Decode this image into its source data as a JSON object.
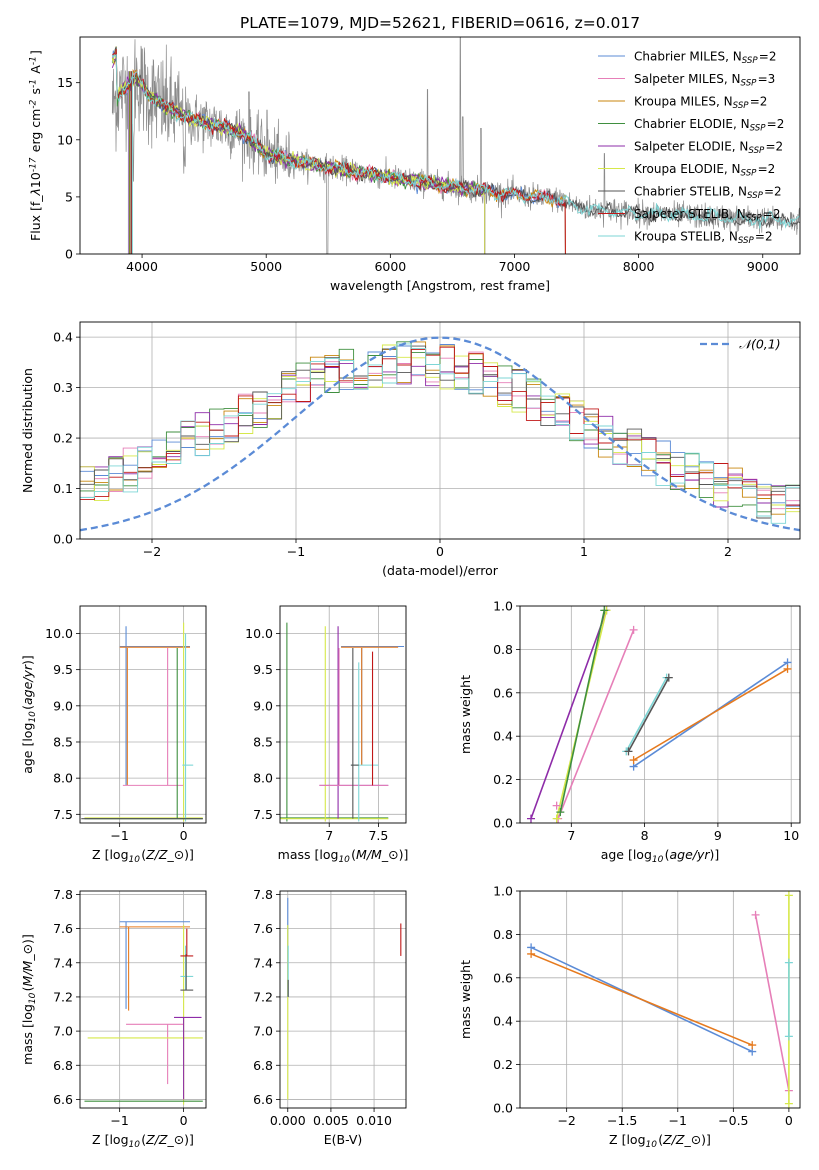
{
  "figure_title": "PLATE=1079, MJD=52621, FIBERID=0616, z=0.017",
  "colors": {
    "chabrier_miles": "#5b8bd6",
    "salpeter_miles": "#e67fb8",
    "kroupa_miles": "#c8860e",
    "chabrier_elodie": "#3f8f3f",
    "salpeter_elodie": "#8e2ca8",
    "kroupa_elodie": "#d6e84a",
    "chabrier_stelib": "#555555",
    "salpeter_stelib": "#c01818",
    "kroupa_stelib": "#7dd6d6",
    "data_gray": "#8a8a8a",
    "gauss": "#5b8bd6",
    "orange": "#e67a1e"
  },
  "chart_data": [
    {
      "id": "spectrum",
      "type": "line",
      "xlabel": "wavelength [Angstrom, rest frame]",
      "ylabel": "Flux [f$_\\lambda$10$^{-17}$ erg cm$^{-2}$ s$^{-1}$ A$^{-1}$]",
      "xlim": [
        3500,
        9300
      ],
      "ylim": [
        0,
        19
      ],
      "xticks": [
        4000,
        5000,
        6000,
        7000,
        8000,
        9000
      ],
      "yticks": [
        0,
        5,
        10,
        15
      ],
      "grid": false,
      "legend_loc": "upper-right",
      "legend": [
        {
          "name": "Chabrier MILES, N$_{SSP}$=2",
          "color": "chabrier_miles"
        },
        {
          "name": "Salpeter MILES, N$_{SSP}$=3",
          "color": "salpeter_miles"
        },
        {
          "name": "Kroupa MILES, N$_{SSP}$=2",
          "color": "kroupa_miles"
        },
        {
          "name": "Chabrier ELODIE, N$_{SSP}$=2",
          "color": "chabrier_elodie"
        },
        {
          "name": "Salpeter ELODIE, N$_{SSP}$=2",
          "color": "salpeter_elodie"
        },
        {
          "name": "Kroupa ELODIE, N$_{SSP}$=2",
          "color": "kroupa_elodie"
        },
        {
          "name": "Chabrier STELIB, N$_{SSP}$=2",
          "color": "chabrier_stelib"
        },
        {
          "name": "Salpeter STELIB, N$_{SSP}$=2",
          "color": "salpeter_stelib"
        },
        {
          "name": "Kroupa STELIB, N$_{SSP}$=2",
          "color": "kroupa_stelib"
        }
      ],
      "continuum": {
        "x": [
          3760,
          3850,
          3950,
          4050,
          4200,
          4400,
          4600,
          4800,
          5000,
          5200,
          5500,
          6000,
          6500,
          7000,
          7400,
          7500,
          8000,
          8500,
          9000,
          9300
        ],
        "y": [
          13.0,
          14.5,
          15.5,
          14.0,
          12.8,
          11.8,
          11.3,
          10.6,
          8.8,
          8.2,
          7.6,
          6.7,
          5.9,
          5.2,
          4.7,
          4.1,
          3.6,
          3.3,
          3.0,
          2.9
        ]
      },
      "models_end": {
        "miles": 7410,
        "elodie": 6760
      },
      "emission_lines": [
        [
          6563,
          15.3
        ],
        [
          6583,
          8.0
        ],
        [
          6300,
          10.4
        ],
        [
          5007,
          8.6
        ],
        [
          4959,
          7.2
        ],
        [
          6730,
          7.0
        ],
        [
          7725,
          4.8
        ],
        [
          4861,
          10.2
        ]
      ]
    },
    {
      "id": "residuals",
      "type": "bar",
      "xlabel": "(data-model)/error",
      "ylabel": "Normed distribution",
      "xlim": [
        -2.5,
        2.5
      ],
      "ylim": [
        0,
        0.43
      ],
      "xticks": [
        -2,
        -1,
        0,
        1,
        2
      ],
      "yticks": [
        0.0,
        0.1,
        0.2,
        0.3,
        0.4
      ],
      "grid": true,
      "legend_loc": "upper-right",
      "legend": [
        {
          "name": "$\\mathcal{N}(0,1)$",
          "color": "gauss"
        }
      ],
      "bin_start": -2.5,
      "bin_width": 0.1
    },
    {
      "id": "age_vs_Z",
      "type": "scatter",
      "xlabel": "Z [log$_{10}$($Z/Z_\\odot$)]",
      "ylabel": "age  [log$_{10}$($age/yr$)]",
      "xlim": [
        -1.62,
        0.35
      ],
      "ylim": [
        7.38,
        10.38
      ],
      "xticks": [
        -1,
        0
      ],
      "yticks": [
        7.5,
        8.0,
        8.5,
        9.0,
        9.5,
        10.0
      ],
      "grid": true
    },
    {
      "id": "age_vs_mass",
      "type": "scatter",
      "xlabel": "mass [log$_{10}$($M/M_\\odot$)]",
      "xlim": [
        6.5,
        7.78
      ],
      "ylim": [
        7.38,
        10.38
      ],
      "xticks": [
        7.0,
        7.5
      ],
      "yticks": [
        7.5,
        8.0,
        8.5,
        9.0,
        9.5,
        10.0
      ],
      "grid": true
    },
    {
      "id": "mw_vs_age",
      "type": "line",
      "xlabel": "age  [log$_{10}$($age/yr$)]",
      "ylabel": "mass weight",
      "xlim": [
        6.3,
        10.12
      ],
      "ylim": [
        0,
        1.0
      ],
      "xticks": [
        7,
        8,
        9,
        10
      ],
      "yticks": [
        0.0,
        0.2,
        0.4,
        0.6,
        0.8,
        1.0
      ],
      "grid": true,
      "series": [
        {
          "color": "chabrier_miles",
          "x": [
            7.85,
            9.95
          ],
          "y": [
            0.26,
            0.74
          ]
        },
        {
          "color": "orange",
          "x": [
            7.85,
            9.95
          ],
          "y": [
            0.29,
            0.71
          ]
        },
        {
          "color": "salpeter_miles",
          "x": [
            6.82,
            7.85
          ],
          "y": [
            0.02,
            0.89
          ]
        },
        {
          "color": "salpeter_elodie",
          "x": [
            6.45,
            7.48
          ],
          "y": [
            0.02,
            0.98
          ]
        },
        {
          "color": "kroupa_elodie",
          "x": [
            6.8,
            7.48
          ],
          "y": [
            0.02,
            0.98
          ]
        },
        {
          "color": "chabrier_elodie",
          "x": [
            6.85,
            7.45
          ],
          "y": [
            0.05,
            0.98
          ]
        },
        {
          "color": "kroupa_stelib",
          "x": [
            7.75,
            8.3
          ],
          "y": [
            0.33,
            0.67
          ]
        },
        {
          "color": "chabrier_stelib",
          "x": [
            7.78,
            8.33
          ],
          "y": [
            0.33,
            0.67
          ]
        }
      ],
      "extra_points": [
        {
          "color": "salpeter_miles",
          "x": 6.8,
          "y": 0.08
        }
      ]
    },
    {
      "id": "mass_vs_Z",
      "type": "scatter",
      "xlabel": "Z [log$_{10}$($Z/Z_\\odot$)]",
      "ylabel": "mass [log$_{10}$($M/M_\\odot$)]",
      "xlim": [
        -1.62,
        0.35
      ],
      "ylim": [
        6.55,
        7.82
      ],
      "xticks": [
        -1,
        0
      ],
      "yticks": [
        6.6,
        6.8,
        7.0,
        7.2,
        7.4,
        7.6,
        7.8
      ],
      "grid": true
    },
    {
      "id": "mass_vs_ebv",
      "type": "scatter",
      "xlabel": "E(B-V)",
      "xlim": [
        -0.0009,
        0.0137
      ],
      "ylim": [
        6.55,
        7.82
      ],
      "xticks": [
        0.0,
        0.005,
        0.01
      ],
      "xticklabels": [
        "0.000",
        "0.005",
        "0.010"
      ],
      "yticks": [
        6.6,
        6.8,
        7.0,
        7.2,
        7.4,
        7.6,
        7.8
      ],
      "grid": true
    },
    {
      "id": "mw_vs_Z",
      "type": "line",
      "xlabel": "Z [log$_{10}$($Z/Z_\\odot$)]",
      "ylabel": "mass weight",
      "xlim": [
        -2.42,
        0.1
      ],
      "ylim": [
        0,
        1.0
      ],
      "xticks": [
        -2.0,
        -1.5,
        -1.0,
        -0.5,
        0.0
      ],
      "yticks": [
        0.0,
        0.2,
        0.4,
        0.6,
        0.8,
        1.0
      ],
      "grid": true,
      "series": [
        {
          "color": "chabrier_miles",
          "x": [
            -2.32,
            -0.33
          ],
          "y": [
            0.74,
            0.26
          ]
        },
        {
          "color": "orange",
          "x": [
            -2.32,
            -0.33
          ],
          "y": [
            0.71,
            0.29
          ]
        },
        {
          "color": "salpeter_miles",
          "x": [
            -0.3,
            0.0
          ],
          "y": [
            0.89,
            0.08
          ]
        },
        {
          "color": "kroupa_elodie",
          "x": [
            0.0,
            0.0
          ],
          "y": [
            0.02,
            0.98
          ]
        },
        {
          "color": "kroupa_stelib",
          "x": [
            0.0,
            0.0
          ],
          "y": [
            0.33,
            0.67
          ]
        }
      ]
    }
  ]
}
